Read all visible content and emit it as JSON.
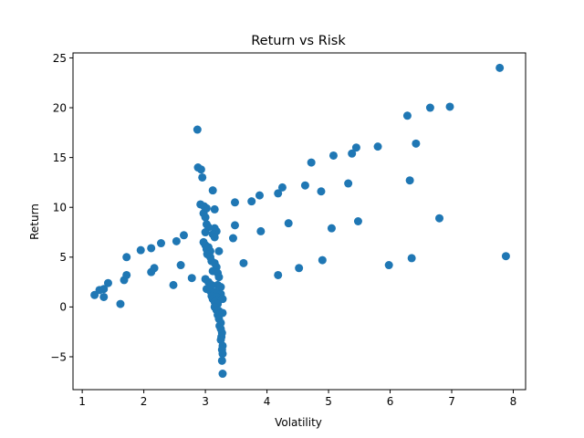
{
  "chart_data": {
    "type": "scatter",
    "title": "Return vs Risk",
    "xlabel": "Volatility",
    "ylabel": "Return",
    "xlim": [
      0.85,
      8.2
    ],
    "ylim": [
      -8.3,
      25.5
    ],
    "xticks": [
      1,
      2,
      3,
      4,
      5,
      6,
      7,
      8
    ],
    "yticks": [
      -5,
      0,
      5,
      10,
      15,
      20,
      25
    ],
    "grid": false,
    "legend": "none",
    "color": "#1f77b4",
    "points": [
      [
        1.2,
        1.2
      ],
      [
        1.28,
        1.7
      ],
      [
        1.35,
        1.0
      ],
      [
        1.35,
        1.8
      ],
      [
        1.42,
        2.4
      ],
      [
        1.62,
        0.3
      ],
      [
        1.68,
        2.7
      ],
      [
        1.72,
        3.2
      ],
      [
        1.72,
        5.0
      ],
      [
        1.95,
        5.7
      ],
      [
        2.12,
        5.9
      ],
      [
        2.12,
        3.5
      ],
      [
        2.17,
        3.9
      ],
      [
        2.28,
        6.4
      ],
      [
        2.48,
        2.2
      ],
      [
        2.53,
        6.6
      ],
      [
        2.6,
        4.2
      ],
      [
        2.65,
        7.2
      ],
      [
        2.78,
        2.9
      ],
      [
        2.87,
        17.8
      ],
      [
        2.88,
        14.0
      ],
      [
        2.93,
        13.8
      ],
      [
        2.95,
        13.0
      ],
      [
        2.92,
        10.3
      ],
      [
        2.98,
        10.1
      ],
      [
        3.02,
        9.9
      ],
      [
        2.97,
        9.4
      ],
      [
        3.0,
        9.0
      ],
      [
        3.02,
        8.3
      ],
      [
        3.12,
        11.7
      ],
      [
        3.15,
        9.8
      ],
      [
        3.05,
        8.0
      ],
      [
        3.15,
        7.9
      ],
      [
        3.18,
        7.6
      ],
      [
        3.0,
        7.5
      ],
      [
        3.12,
        7.3
      ],
      [
        3.15,
        7.0
      ],
      [
        2.97,
        6.5
      ],
      [
        3.0,
        6.2
      ],
      [
        3.05,
        6.0
      ],
      [
        3.02,
        5.8
      ],
      [
        3.08,
        5.6
      ],
      [
        3.22,
        5.6
      ],
      [
        3.03,
        5.3
      ],
      [
        3.08,
        5.0
      ],
      [
        3.1,
        4.6
      ],
      [
        3.15,
        4.4
      ],
      [
        3.18,
        4.0
      ],
      [
        3.12,
        3.6
      ],
      [
        3.2,
        3.4
      ],
      [
        3.22,
        3.0
      ],
      [
        3.0,
        2.8
      ],
      [
        3.05,
        2.5
      ],
      [
        3.1,
        2.2
      ],
      [
        3.2,
        2.2
      ],
      [
        3.25,
        2.0
      ],
      [
        3.02,
        1.8
      ],
      [
        3.08,
        1.6
      ],
      [
        3.15,
        1.5
      ],
      [
        3.2,
        1.4
      ],
      [
        3.25,
        1.3
      ],
      [
        3.1,
        1.1
      ],
      [
        3.18,
        1.0
      ],
      [
        3.12,
        0.8
      ],
      [
        3.22,
        0.7
      ],
      [
        3.28,
        0.8
      ],
      [
        3.15,
        0.5
      ],
      [
        3.2,
        0.3
      ],
      [
        3.15,
        0.0
      ],
      [
        3.18,
        -0.3
      ],
      [
        3.22,
        -0.4
      ],
      [
        3.2,
        -0.8
      ],
      [
        3.25,
        -0.6
      ],
      [
        3.28,
        -0.6
      ],
      [
        3.22,
        -1.2
      ],
      [
        3.25,
        -1.6
      ],
      [
        3.23,
        -1.9
      ],
      [
        3.25,
        -2.2
      ],
      [
        3.27,
        -2.6
      ],
      [
        3.26,
        -3.0
      ],
      [
        3.25,
        -3.3
      ],
      [
        3.28,
        -3.9
      ],
      [
        3.27,
        -4.3
      ],
      [
        3.28,
        -4.7
      ],
      [
        3.27,
        -5.4
      ],
      [
        3.28,
        -6.7
      ],
      [
        3.45,
        6.9
      ],
      [
        3.48,
        8.2
      ],
      [
        3.48,
        10.5
      ],
      [
        3.62,
        4.4
      ],
      [
        3.75,
        10.6
      ],
      [
        3.88,
        11.2
      ],
      [
        3.9,
        7.6
      ],
      [
        4.18,
        11.4
      ],
      [
        4.18,
        3.2
      ],
      [
        4.25,
        12.0
      ],
      [
        4.35,
        8.4
      ],
      [
        4.52,
        3.9
      ],
      [
        4.62,
        12.2
      ],
      [
        4.72,
        14.5
      ],
      [
        4.88,
        11.6
      ],
      [
        4.9,
        4.7
      ],
      [
        5.05,
        7.9
      ],
      [
        5.08,
        15.2
      ],
      [
        5.32,
        12.4
      ],
      [
        5.38,
        15.4
      ],
      [
        5.45,
        16.0
      ],
      [
        5.48,
        8.6
      ],
      [
        5.8,
        16.1
      ],
      [
        5.98,
        4.2
      ],
      [
        6.28,
        19.2
      ],
      [
        6.32,
        12.7
      ],
      [
        6.35,
        4.9
      ],
      [
        6.42,
        16.4
      ],
      [
        6.65,
        20.0
      ],
      [
        6.8,
        8.9
      ],
      [
        6.97,
        20.1
      ],
      [
        7.78,
        24.0
      ],
      [
        7.88,
        5.1
      ]
    ]
  }
}
